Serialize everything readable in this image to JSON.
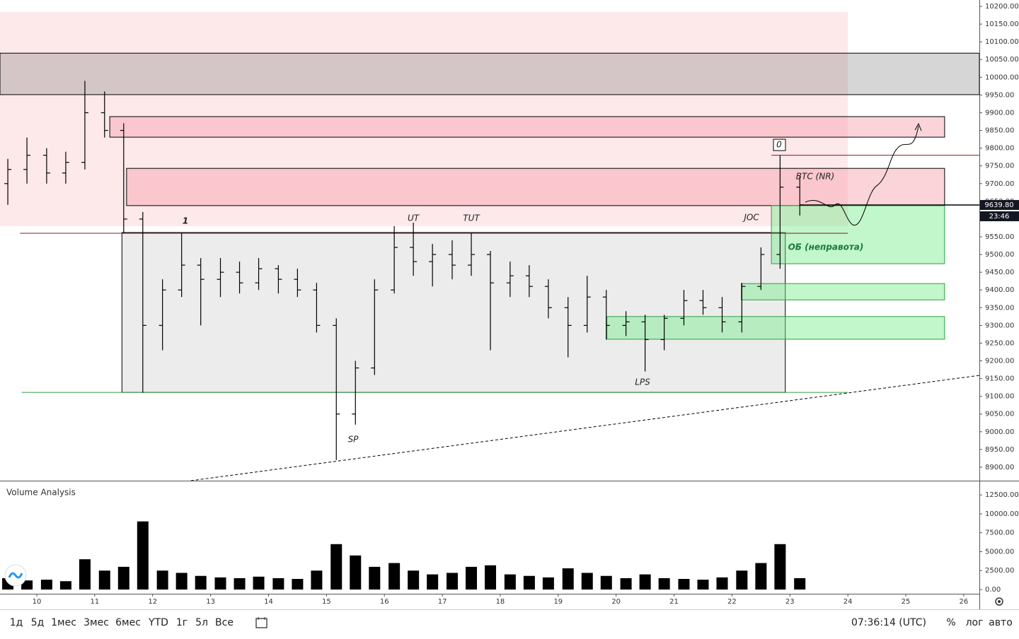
{
  "chart_data": [
    {
      "type": "ohlc",
      "x": [
        9.5,
        9.83,
        10.17,
        10.5,
        10.83,
        11.17,
        11.5,
        11.83,
        12.17,
        12.5,
        12.83,
        13.17,
        13.5,
        13.83,
        14.17,
        14.5,
        14.83,
        15.17,
        15.5,
        15.83,
        16.17,
        16.5,
        16.83,
        17.17,
        17.5,
        17.83,
        18.17,
        18.5,
        18.83,
        19.17,
        19.5,
        19.83,
        20.17,
        20.5,
        20.83,
        21.17,
        21.5,
        21.83,
        22.17,
        22.5,
        22.83,
        23.17
      ],
      "open": [
        9700,
        9740,
        9780,
        9730,
        9760,
        9900,
        9850,
        9600,
        9300,
        9400,
        9470,
        9430,
        9450,
        9420,
        9460,
        9430,
        9400,
        9300,
        9050,
        9180,
        9400,
        9520,
        9480,
        9500,
        9470,
        9500,
        9420,
        9440,
        9410,
        9350,
        9300,
        9380,
        9300,
        9310,
        9260,
        9320,
        9370,
        9350,
        9310,
        9410,
        9500,
        9690
      ],
      "high": [
        9770,
        9830,
        9800,
        9790,
        9990,
        9960,
        9870,
        9620,
        9430,
        9560,
        9490,
        9490,
        9480,
        9490,
        9470,
        9460,
        9420,
        9320,
        9200,
        9430,
        9580,
        9590,
        9530,
        9540,
        9560,
        9510,
        9480,
        9470,
        9430,
        9380,
        9440,
        9400,
        9340,
        9330,
        9330,
        9400,
        9400,
        9380,
        9420,
        9520,
        9780,
        9720
      ],
      "low": [
        9640,
        9700,
        9700,
        9700,
        9740,
        9830,
        9560,
        9110,
        9230,
        9380,
        9300,
        9380,
        9390,
        9400,
        9390,
        9380,
        9280,
        8920,
        9020,
        9160,
        9390,
        9440,
        9410,
        9430,
        9440,
        9230,
        9380,
        9380,
        9320,
        9210,
        9280,
        9260,
        9270,
        9170,
        9230,
        9300,
        9330,
        9280,
        9280,
        9400,
        9460,
        9610
      ],
      "close": [
        9740,
        9780,
        9730,
        9760,
        9900,
        9850,
        9600,
        9300,
        9400,
        9470,
        9430,
        9450,
        9420,
        9460,
        9430,
        9400,
        9300,
        9050,
        9180,
        9400,
        9520,
        9480,
        9500,
        9470,
        9500,
        9420,
        9440,
        9410,
        9350,
        9300,
        9380,
        9300,
        9310,
        9260,
        9320,
        9370,
        9350,
        9310,
        9410,
        9500,
        9690,
        9640
      ],
      "color": "#000000",
      "xlim": [
        9.365,
        26.27
      ],
      "ylim": [
        8862,
        10218
      ],
      "yticks": [
        {
          "value": 10200,
          "label": "10200.00"
        },
        {
          "value": 10150,
          "label": "10150.00"
        },
        {
          "value": 10100,
          "label": "10100.00"
        },
        {
          "value": 10050,
          "label": "10050.00"
        },
        {
          "value": 10000,
          "label": "10000.00"
        },
        {
          "value": 9950,
          "label": "9950.00"
        },
        {
          "value": 9900,
          "label": "9900.00"
        },
        {
          "value": 9850,
          "label": "9850.00"
        },
        {
          "value": 9800,
          "label": "9800.00"
        },
        {
          "value": 9750,
          "label": "9750.00"
        },
        {
          "value": 9700,
          "label": "9700.00"
        },
        {
          "value": 9650,
          "label": "9650.00"
        },
        {
          "value": 9600,
          "label": "9600.00"
        },
        {
          "value": 9550,
          "label": "9550.00"
        },
        {
          "value": 9500,
          "label": "9500.00"
        },
        {
          "value": 9450,
          "label": "9450.00"
        },
        {
          "value": 9400,
          "label": "9400.00"
        },
        {
          "value": 9350,
          "label": "9350.00"
        },
        {
          "value": 9300,
          "label": "9300.00"
        },
        {
          "value": 9250,
          "label": "9250.00"
        },
        {
          "value": 9200,
          "label": "9200.00"
        },
        {
          "value": 9150,
          "label": "9150.00"
        },
        {
          "value": 9100,
          "label": "9100.00"
        },
        {
          "value": 9050,
          "label": "9050.00"
        },
        {
          "value": 9000,
          "label": "9000.00"
        },
        {
          "value": 8950,
          "label": "8950.00"
        },
        {
          "value": 8900,
          "label": "8900.00"
        }
      ],
      "zones": [
        {
          "x": [
            9.365,
            24.0
          ],
          "y": [
            9580,
            10184
          ],
          "color": "#fde8ea",
          "border": "none"
        },
        {
          "x": [
            9.365,
            26.27
          ],
          "y": [
            9951,
            10068
          ],
          "color": "rgba(120,120,120,0.3)",
          "border": "#000000"
        },
        {
          "x": [
            11.26,
            25.67
          ],
          "y": [
            9831,
            9889
          ],
          "color": "rgba(245,160,170,0.45)",
          "border": "#000000"
        },
        {
          "x": [
            11.55,
            25.67
          ],
          "y": [
            9638,
            9743
          ],
          "color": "rgba(245,160,170,0.45)",
          "border": "#000000"
        },
        {
          "x": [
            11.47,
            22.92
          ],
          "y": [
            9111,
            9562
          ],
          "color": "rgba(200,200,200,0.35)",
          "border": "#000000"
        },
        {
          "x": [
            22.68,
            25.67
          ],
          "y": [
            9474,
            9638
          ],
          "color": "rgba(120,235,140,0.45)",
          "border": "#2e9e46"
        },
        {
          "x": [
            22.16,
            25.67
          ],
          "y": [
            9372,
            9418
          ],
          "color": "rgba(120,235,140,0.45)",
          "border": "#2e9e46"
        },
        {
          "x": [
            19.84,
            25.67
          ],
          "y": [
            9261,
            9325
          ],
          "color": "rgba(120,235,140,0.45)",
          "border": "#2e9e46"
        }
      ],
      "lines": [
        {
          "x": [
            9.71,
            24.0
          ],
          "y": [
            9560,
            9560
          ],
          "color": "#8b1a1a",
          "dash": false
        },
        {
          "x": [
            9.74,
            24.0
          ],
          "y": [
            9111,
            9111
          ],
          "color": "#2e9e46",
          "dash": false
        },
        {
          "x": [
            22.68,
            26.27
          ],
          "y": [
            9780,
            9780
          ],
          "color": "#8b1a1a",
          "dash": false
        },
        {
          "x": [
            12.66,
            26.27
          ],
          "y": [
            8862,
            9159
          ],
          "color": "#000000",
          "dash": true
        }
      ],
      "annotations": [
        "1",
        "UT",
        "TUT",
        "JOC",
        "BTC (NR)",
        "ОБ (неправота)",
        "LPS",
        "SP",
        "0"
      ],
      "last_price": {
        "value": 9639.8,
        "label": "9639.80"
      },
      "countdown": "23:46"
    },
    {
      "type": "bar",
      "title": "Volume Analysis",
      "x": [
        9.5,
        9.83,
        10.17,
        10.5,
        10.83,
        11.17,
        11.5,
        11.83,
        12.17,
        12.5,
        12.83,
        13.17,
        13.5,
        13.83,
        14.17,
        14.5,
        14.83,
        15.17,
        15.5,
        15.83,
        16.17,
        16.5,
        16.83,
        17.17,
        17.5,
        17.83,
        18.17,
        18.5,
        18.83,
        19.17,
        19.5,
        19.83,
        20.17,
        20.5,
        20.83,
        21.17,
        21.5,
        21.83,
        22.17,
        22.5,
        22.83,
        23.17
      ],
      "values": [
        1500,
        1200,
        1300,
        1100,
        4000,
        2500,
        3000,
        9000,
        2500,
        2200,
        1800,
        1600,
        1500,
        1700,
        1500,
        1400,
        2500,
        6000,
        4500,
        3000,
        3500,
        2500,
        2000,
        2200,
        3000,
        3200,
        2000,
        1800,
        1600,
        2800,
        2200,
        1800,
        1500,
        2000,
        1500,
        1400,
        1300,
        1600,
        2500,
        3500,
        6000,
        1500
      ],
      "color": "#000000",
      "xlim": [
        9.365,
        26.27
      ],
      "xticks": [
        10,
        11,
        12,
        13,
        14,
        15,
        16,
        17,
        18,
        19,
        20,
        21,
        22,
        23,
        24,
        25,
        26
      ],
      "ylim": [
        0,
        14200
      ],
      "yticks": [
        {
          "value": 0,
          "label": "0.00"
        },
        {
          "value": 2500,
          "label": "2500.00"
        },
        {
          "value": 5000,
          "label": "5000.00"
        },
        {
          "value": 7500,
          "label": "7500.00"
        },
        {
          "value": 10000,
          "label": "10000.00"
        },
        {
          "value": 12500,
          "label": "12500.00"
        }
      ]
    }
  ],
  "toolbar": {
    "ranges": [
      "1д",
      "5д",
      "1мес",
      "3мес",
      "6мес",
      "YTD",
      "1г",
      "5л",
      "Все"
    ],
    "time": "07:36:14 (UTC)",
    "options": [
      "%",
      "лог",
      "авто"
    ]
  }
}
